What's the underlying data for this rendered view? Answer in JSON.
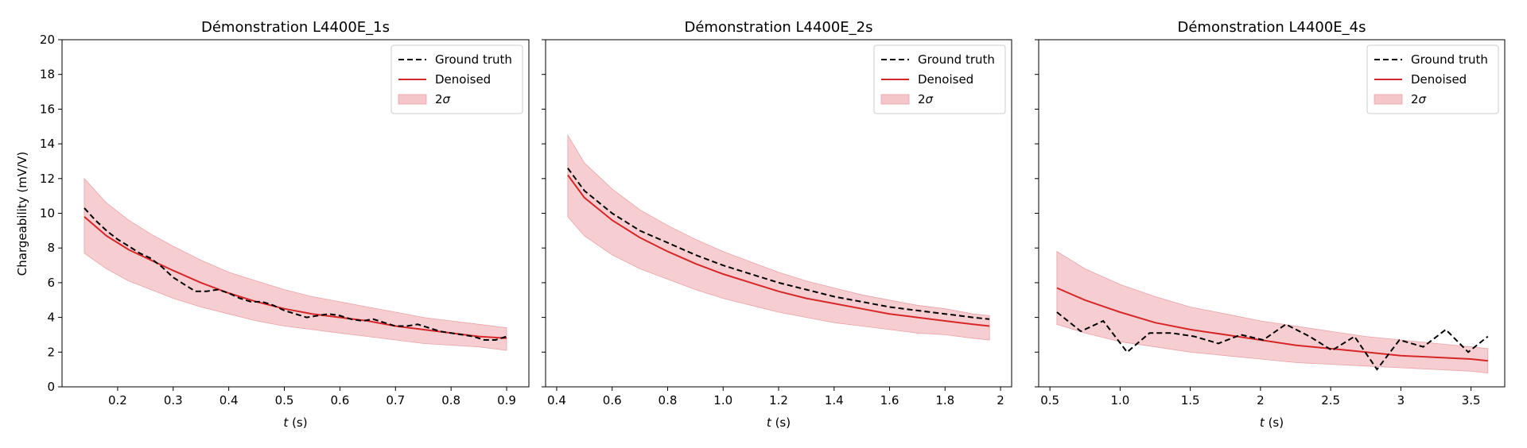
{
  "figure": {
    "ylabel": "Chargeability (mV/V)",
    "xlabel_var": "t",
    "xlabel_unit": " (s)",
    "legend": {
      "truth": "Ground truth",
      "denoised": "Denoised",
      "band_prefix": "2",
      "band_symbol": "σ"
    },
    "colors": {
      "truth": "#000000",
      "denoised": "#d62728",
      "band": "#f4c6c9",
      "band_edge": "#e9a3a8"
    }
  },
  "chart_data": [
    {
      "type": "line",
      "title": "Démonstration L4400E_1s",
      "xlim": [
        0.1,
        0.94
      ],
      "ylim": [
        0,
        20
      ],
      "xticks": [
        0.2,
        0.3,
        0.4,
        0.5,
        0.6,
        0.7,
        0.8,
        0.9
      ],
      "yticks": [
        0,
        2,
        4,
        6,
        8,
        10,
        12,
        14,
        16,
        18,
        20
      ],
      "show_y_ticklabels": true,
      "legend_position": "top-right",
      "series": [
        {
          "name": "Ground truth",
          "style": "dashed",
          "x": [
            0.14,
            0.16,
            0.18,
            0.2,
            0.22,
            0.24,
            0.26,
            0.28,
            0.3,
            0.32,
            0.34,
            0.36,
            0.38,
            0.4,
            0.42,
            0.44,
            0.46,
            0.48,
            0.5,
            0.52,
            0.54,
            0.56,
            0.58,
            0.6,
            0.62,
            0.64,
            0.66,
            0.68,
            0.7,
            0.72,
            0.74,
            0.76,
            0.78,
            0.8,
            0.82,
            0.84,
            0.86,
            0.88,
            0.9
          ],
          "y": [
            10.3,
            9.6,
            9.0,
            8.5,
            8.1,
            7.7,
            7.4,
            6.9,
            6.3,
            5.9,
            5.5,
            5.5,
            5.6,
            5.4,
            5.1,
            4.9,
            4.9,
            4.7,
            4.4,
            4.2,
            4.0,
            4.1,
            4.2,
            4.1,
            3.9,
            3.8,
            3.9,
            3.7,
            3.5,
            3.5,
            3.6,
            3.4,
            3.2,
            3.1,
            3.0,
            2.9,
            2.7,
            2.7,
            2.9
          ]
        },
        {
          "name": "Denoised",
          "style": "solid",
          "x": [
            0.14,
            0.18,
            0.22,
            0.26,
            0.3,
            0.35,
            0.4,
            0.45,
            0.5,
            0.55,
            0.6,
            0.65,
            0.7,
            0.75,
            0.8,
            0.85,
            0.9
          ],
          "y": [
            9.8,
            8.7,
            7.9,
            7.3,
            6.7,
            6.0,
            5.4,
            4.9,
            4.5,
            4.2,
            4.0,
            3.8,
            3.5,
            3.3,
            3.1,
            2.9,
            2.8
          ]
        },
        {
          "name": "2σ",
          "style": "band",
          "x": [
            0.14,
            0.18,
            0.22,
            0.26,
            0.3,
            0.35,
            0.4,
            0.45,
            0.5,
            0.55,
            0.6,
            0.65,
            0.7,
            0.75,
            0.8,
            0.85,
            0.9
          ],
          "upper": [
            12.0,
            10.6,
            9.6,
            8.8,
            8.1,
            7.3,
            6.6,
            6.1,
            5.6,
            5.2,
            4.9,
            4.6,
            4.3,
            4.0,
            3.8,
            3.6,
            3.4
          ],
          "lower": [
            7.7,
            6.8,
            6.1,
            5.6,
            5.1,
            4.6,
            4.2,
            3.8,
            3.5,
            3.3,
            3.1,
            2.9,
            2.7,
            2.5,
            2.4,
            2.3,
            2.1
          ]
        }
      ]
    },
    {
      "type": "line",
      "title": "Démonstration L4400E_2s",
      "xlim": [
        0.36,
        2.04
      ],
      "ylim": [
        0,
        20
      ],
      "xticks": [
        0.4,
        0.6,
        0.8,
        1.0,
        1.2,
        1.4,
        1.6,
        1.8,
        2.0
      ],
      "yticks": [
        0,
        2,
        4,
        6,
        8,
        10,
        12,
        14,
        16,
        18,
        20
      ],
      "show_y_ticklabels": false,
      "legend_position": "top-right",
      "series": [
        {
          "name": "Ground truth",
          "style": "dashed",
          "x": [
            0.44,
            0.5,
            0.6,
            0.7,
            0.8,
            0.9,
            1.0,
            1.1,
            1.2,
            1.3,
            1.4,
            1.5,
            1.6,
            1.7,
            1.8,
            1.9,
            1.96
          ],
          "y": [
            12.6,
            11.3,
            10.0,
            9.0,
            8.3,
            7.6,
            7.0,
            6.5,
            6.0,
            5.6,
            5.2,
            4.9,
            4.6,
            4.4,
            4.2,
            4.0,
            3.9
          ]
        },
        {
          "name": "Denoised",
          "style": "solid",
          "x": [
            0.44,
            0.5,
            0.6,
            0.7,
            0.8,
            0.9,
            1.0,
            1.1,
            1.2,
            1.3,
            1.4,
            1.5,
            1.6,
            1.7,
            1.8,
            1.9,
            1.96
          ],
          "y": [
            12.2,
            10.9,
            9.6,
            8.6,
            7.8,
            7.1,
            6.5,
            6.0,
            5.5,
            5.1,
            4.8,
            4.5,
            4.2,
            4.0,
            3.8,
            3.6,
            3.5
          ]
        },
        {
          "name": "2σ",
          "style": "band",
          "x": [
            0.44,
            0.5,
            0.6,
            0.7,
            0.8,
            0.9,
            1.0,
            1.1,
            1.2,
            1.3,
            1.4,
            1.5,
            1.6,
            1.7,
            1.8,
            1.9,
            1.96
          ],
          "upper": [
            14.5,
            12.9,
            11.4,
            10.2,
            9.3,
            8.5,
            7.8,
            7.2,
            6.6,
            6.1,
            5.7,
            5.3,
            5.0,
            4.7,
            4.5,
            4.2,
            4.1
          ],
          "lower": [
            9.8,
            8.7,
            7.6,
            6.8,
            6.2,
            5.6,
            5.1,
            4.7,
            4.3,
            4.0,
            3.7,
            3.5,
            3.3,
            3.1,
            3.0,
            2.8,
            2.7
          ]
        }
      ]
    },
    {
      "type": "line",
      "title": "Démonstration L4400E_4s",
      "xlim": [
        0.42,
        3.74
      ],
      "ylim": [
        0,
        20
      ],
      "xticks": [
        0.5,
        1.0,
        1.5,
        2.0,
        2.5,
        3.0,
        3.5
      ],
      "yticks": [
        0,
        2,
        4,
        6,
        8,
        10,
        12,
        14,
        16,
        18,
        20
      ],
      "show_y_ticklabels": false,
      "legend_position": "top-right",
      "series": [
        {
          "name": "Ground truth",
          "style": "dashed",
          "x": [
            0.55,
            0.72,
            0.88,
            1.05,
            1.21,
            1.37,
            1.53,
            1.7,
            1.86,
            2.02,
            2.18,
            2.35,
            2.51,
            2.67,
            2.83,
            2.99,
            3.16,
            3.32,
            3.48,
            3.62
          ],
          "y": [
            4.3,
            3.2,
            3.8,
            2.0,
            3.1,
            3.1,
            2.9,
            2.5,
            3.0,
            2.7,
            3.6,
            2.9,
            2.1,
            2.9,
            1.0,
            2.7,
            2.3,
            3.3,
            2.0,
            2.9
          ]
        },
        {
          "name": "Denoised",
          "style": "solid",
          "x": [
            0.55,
            0.75,
            1.0,
            1.25,
            1.5,
            1.75,
            2.0,
            2.25,
            2.5,
            2.75,
            3.0,
            3.25,
            3.5,
            3.62
          ],
          "y": [
            5.7,
            5.0,
            4.3,
            3.7,
            3.3,
            3.0,
            2.7,
            2.4,
            2.2,
            2.0,
            1.8,
            1.7,
            1.6,
            1.5
          ]
        },
        {
          "name": "2σ",
          "style": "band",
          "x": [
            0.55,
            0.75,
            1.0,
            1.25,
            1.5,
            1.75,
            2.0,
            2.25,
            2.5,
            2.75,
            3.0,
            3.25,
            3.5,
            3.62
          ],
          "upper": [
            7.8,
            6.8,
            5.9,
            5.2,
            4.6,
            4.2,
            3.8,
            3.5,
            3.2,
            2.9,
            2.7,
            2.5,
            2.3,
            2.2
          ],
          "lower": [
            3.6,
            3.1,
            2.6,
            2.3,
            2.0,
            1.8,
            1.6,
            1.4,
            1.3,
            1.2,
            1.1,
            1.0,
            0.9,
            0.8
          ]
        }
      ]
    }
  ]
}
